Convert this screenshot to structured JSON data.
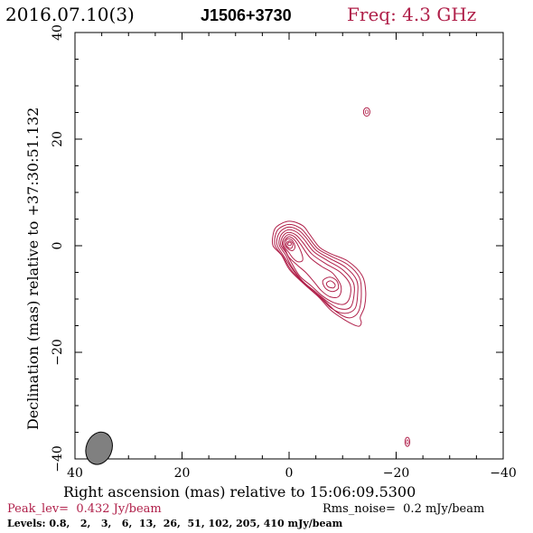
{
  "header": {
    "date": "2016.07.10(3)",
    "source": "J1506+3730",
    "freq": "Freq: 4.3 GHz"
  },
  "footer": {
    "peak": "Peak_lev=  0.432 Jy/beam",
    "rms": "Rms_noise=  0.2 mJy/beam",
    "levels": "Levels: 0.8,   2,   3,   6,  13,  26,  51, 102, 205, 410 mJy/beam"
  },
  "colors": {
    "contour": "#b0204a",
    "axis": "#000000",
    "beam_fill": "#808080"
  },
  "chart_data": {
    "type": "contour",
    "xlabel": "Right ascension (mas) relative to 15:06:09.5300",
    "ylabel": "Declination (mas) relative to +37:30:51.132",
    "xlim": [
      40,
      -40
    ],
    "ylim": [
      -40,
      40
    ],
    "xticks": [
      40,
      20,
      0,
      -20,
      -40
    ],
    "yticks": [
      -40,
      -20,
      0,
      20,
      40
    ],
    "xtick_labels": [
      "40",
      "20",
      "0",
      "−20",
      "−40"
    ],
    "ytick_labels": [
      "−40",
      "−20",
      "0",
      "20",
      "40"
    ],
    "beam": {
      "x": 35.5,
      "y": -38.0,
      "major": 3.1,
      "minor": 2.4,
      "pa_deg": 20
    },
    "core": {
      "x": 0.0,
      "y": 0.5
    },
    "contours": [
      [
        [
          3,
          2
        ],
        [
          2.3,
          3.6
        ],
        [
          0,
          4.6
        ],
        [
          -2.5,
          3.8
        ],
        [
          -3.8,
          2.2
        ],
        [
          -5.7,
          -0.3
        ],
        [
          -8,
          -1.6
        ],
        [
          -11,
          -2.9
        ],
        [
          -13.6,
          -5.5
        ],
        [
          -14.3,
          -8.4
        ],
        [
          -14.1,
          -11.4
        ],
        [
          -13.3,
          -13.4
        ],
        [
          -13.5,
          -14.4
        ],
        [
          -13.1,
          -15.1
        ],
        [
          -12,
          -14.8
        ],
        [
          -10.2,
          -13.8
        ],
        [
          -7.8,
          -12.1
        ],
        [
          -5.6,
          -9.7
        ],
        [
          -2.7,
          -7.1
        ],
        [
          -0.1,
          -4.5
        ],
        [
          1.4,
          -1.8
        ],
        [
          3,
          0
        ]
      ],
      [
        [
          2.6,
          1.8
        ],
        [
          1.9,
          3.2
        ],
        [
          0,
          4
        ],
        [
          -2.1,
          3.3
        ],
        [
          -3.4,
          1.9
        ],
        [
          -5.3,
          -0.5
        ],
        [
          -7.7,
          -1.9
        ],
        [
          -10.9,
          -3.5
        ],
        [
          -13.1,
          -5.9
        ],
        [
          -13.5,
          -8.8
        ],
        [
          -13.2,
          -11.7
        ],
        [
          -12.4,
          -13.1
        ],
        [
          -10.9,
          -13.5
        ],
        [
          -8.7,
          -12.3
        ],
        [
          -6.4,
          -10.1
        ],
        [
          -3.3,
          -7.5
        ],
        [
          -0.5,
          -4.7
        ],
        [
          1.1,
          -2.1
        ],
        [
          2.6,
          0
        ]
      ],
      [
        [
          2.2,
          1.5
        ],
        [
          1.5,
          2.8
        ],
        [
          0,
          3.5
        ],
        [
          -1.8,
          2.9
        ],
        [
          -3.1,
          1.6
        ],
        [
          -5,
          -0.8
        ],
        [
          -7.4,
          -2.3
        ],
        [
          -10.5,
          -4
        ],
        [
          -12.6,
          -6.4
        ],
        [
          -12.8,
          -9.2
        ],
        [
          -12.3,
          -11.8
        ],
        [
          -10.4,
          -12.7
        ],
        [
          -8,
          -11.8
        ],
        [
          -5.8,
          -9.7
        ],
        [
          -3,
          -7.3
        ],
        [
          -0.7,
          -4.5
        ],
        [
          0.8,
          -2.2
        ],
        [
          2.2,
          0
        ]
      ],
      [
        [
          1.8,
          1.3
        ],
        [
          1.2,
          2.4
        ],
        [
          0,
          3
        ],
        [
          -1.5,
          2.5
        ],
        [
          -2.8,
          1.2
        ],
        [
          -4.6,
          -1.1
        ],
        [
          -7.2,
          -2.8
        ],
        [
          -10,
          -4.5
        ],
        [
          -12,
          -6.9
        ],
        [
          -12.1,
          -9.5
        ],
        [
          -11.4,
          -11.6
        ],
        [
          -9.4,
          -11.8
        ],
        [
          -7.3,
          -10.6
        ],
        [
          -5,
          -8.7
        ],
        [
          -2.5,
          -6.6
        ],
        [
          -0.4,
          -3.8
        ],
        [
          0.6,
          -1.8
        ],
        [
          1.8,
          0
        ]
      ],
      [
        [
          1.5,
          1
        ],
        [
          0.9,
          2.1
        ],
        [
          0,
          2.5
        ],
        [
          -1.3,
          2
        ],
        [
          -2.5,
          0.7
        ],
        [
          -4.3,
          -1.6
        ],
        [
          -6.9,
          -3.4
        ],
        [
          -9.6,
          -5
        ],
        [
          -11.4,
          -7.3
        ],
        [
          -11.3,
          -9.8
        ],
        [
          -10.2,
          -11
        ],
        [
          -8.2,
          -10.6
        ],
        [
          -6.2,
          -9.4
        ],
        [
          -4.1,
          -7.5
        ],
        [
          -2,
          -5.7
        ],
        [
          -0.4,
          -3.1
        ],
        [
          0.5,
          -1.4
        ],
        [
          1.5,
          0
        ]
      ],
      [
        [
          1.2,
          0.9
        ],
        [
          0.6,
          1.8
        ],
        [
          0,
          2.1
        ],
        [
          -1.1,
          1.6
        ],
        [
          -2.2,
          0.2
        ],
        [
          -3.9,
          -2.2
        ],
        [
          -6.1,
          -3.9
        ],
        [
          -8.2,
          -5.2
        ],
        [
          -9.7,
          -7.6
        ],
        [
          -9.3,
          -9.5
        ],
        [
          -7.7,
          -9.6
        ],
        [
          -6,
          -8.4
        ],
        [
          -4.6,
          -6.7
        ],
        [
          -3.1,
          -5
        ],
        [
          -1.6,
          -3.7
        ],
        [
          0,
          -2.2
        ],
        [
          0.6,
          -1
        ],
        [
          1.2,
          0
        ]
      ],
      [
        [
          1,
          0.7
        ],
        [
          0.5,
          1.4
        ],
        [
          0,
          1.7
        ],
        [
          -0.8,
          1.3
        ],
        [
          -1.5,
          0.4
        ],
        [
          -2.4,
          -1.6
        ],
        [
          -2.5,
          -2.8
        ],
        [
          -1.6,
          -3
        ],
        [
          -0.7,
          -2.3
        ],
        [
          0.1,
          -1.2
        ],
        [
          0.7,
          -0.5
        ],
        [
          1,
          0
        ]
      ],
      [
        [
          0.7,
          0.6
        ],
        [
          0.4,
          1.2
        ],
        [
          0,
          1.3
        ],
        [
          -0.5,
          1.1
        ],
        [
          -0.9,
          0.5
        ],
        [
          -1.1,
          -0.3
        ],
        [
          -0.7,
          -0.9
        ],
        [
          -0.1,
          -0.8
        ],
        [
          0.5,
          -0.3
        ],
        [
          0.7,
          0
        ]
      ],
      [
        [
          0.5,
          0.4
        ],
        [
          0.2,
          0.8
        ],
        [
          -0.2,
          0.9
        ],
        [
          -0.6,
          0.6
        ],
        [
          -0.7,
          0.1
        ],
        [
          -0.5,
          -0.4
        ],
        [
          -0.1,
          -0.5
        ],
        [
          0.3,
          -0.2
        ],
        [
          0.5,
          0
        ]
      ],
      [
        [
          0.25,
          0.35
        ],
        [
          0,
          0.65
        ],
        [
          -0.3,
          0.6
        ],
        [
          -0.4,
          0.35
        ],
        [
          -0.3,
          0.1
        ],
        [
          0,
          0.05
        ],
        [
          0.25,
          0.2
        ]
      ],
      [
        [
          -6.3,
          -6.6
        ],
        [
          -7.6,
          -5.9
        ],
        [
          -8.9,
          -6.6
        ],
        [
          -9.2,
          -8
        ],
        [
          -8.1,
          -8.6
        ],
        [
          -6.8,
          -8
        ]
      ],
      [
        [
          -7,
          -7
        ],
        [
          -7.8,
          -6.6
        ],
        [
          -8.6,
          -7.3
        ],
        [
          -8.3,
          -7.9
        ],
        [
          -7.3,
          -7.7
        ]
      ]
    ],
    "islands": [
      {
        "x": -14.5,
        "y": 25.1,
        "rx": 0.6,
        "ry": 0.8
      },
      {
        "x": -22.1,
        "y": -36.8,
        "rx": 0.45,
        "ry": 0.85
      }
    ]
  }
}
